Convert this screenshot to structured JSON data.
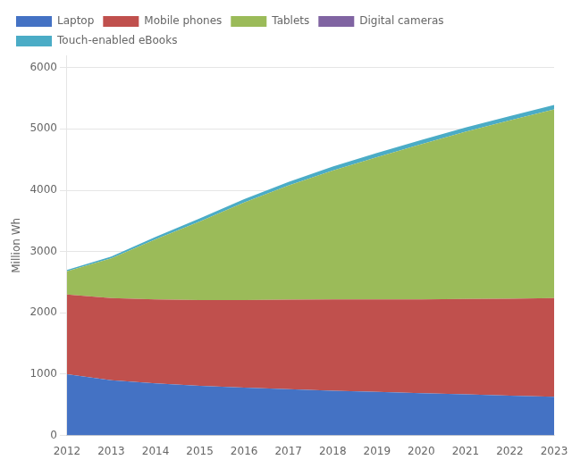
{
  "chart_data": {
    "type": "area",
    "stacked": true,
    "x": [
      2012,
      2013,
      2014,
      2015,
      2016,
      2017,
      2018,
      2019,
      2020,
      2021,
      2022,
      2023
    ],
    "series": [
      {
        "name": "Laptop",
        "color": "#4472C4",
        "values": [
          1000,
          900,
          850,
          810,
          780,
          755,
          730,
          710,
          690,
          670,
          650,
          630
        ]
      },
      {
        "name": "Mobile phones",
        "color": "#C0504D",
        "values": [
          1300,
          1340,
          1370,
          1400,
          1430,
          1460,
          1490,
          1510,
          1530,
          1555,
          1580,
          1610
        ]
      },
      {
        "name": "Tablets",
        "color": "#9BBB59",
        "values": [
          380,
          650,
          980,
          1280,
          1590,
          1860,
          2100,
          2320,
          2530,
          2730,
          2910,
          3080
        ]
      },
      {
        "name": "Digital cameras",
        "color": "#8064A2",
        "values": [
          0,
          0,
          0,
          0,
          0,
          0,
          0,
          0,
          0,
          0,
          0,
          0
        ]
      },
      {
        "name": "Touch-enabled eBooks",
        "color": "#4BACC6",
        "values": [
          20,
          30,
          40,
          50,
          55,
          60,
          65,
          70,
          70,
          70,
          70,
          70
        ]
      }
    ],
    "ylabel": "Million Wh",
    "xlim": [
      2012,
      2023
    ],
    "xticks": [
      2012,
      2013,
      2014,
      2015,
      2016,
      2017,
      2018,
      2019,
      2020,
      2021,
      2022,
      2023
    ],
    "ylim": [
      0,
      6200
    ],
    "yticks": [
      0,
      1000,
      2000,
      3000,
      4000,
      5000,
      6000
    ],
    "grid": true,
    "legend": "upper left"
  }
}
